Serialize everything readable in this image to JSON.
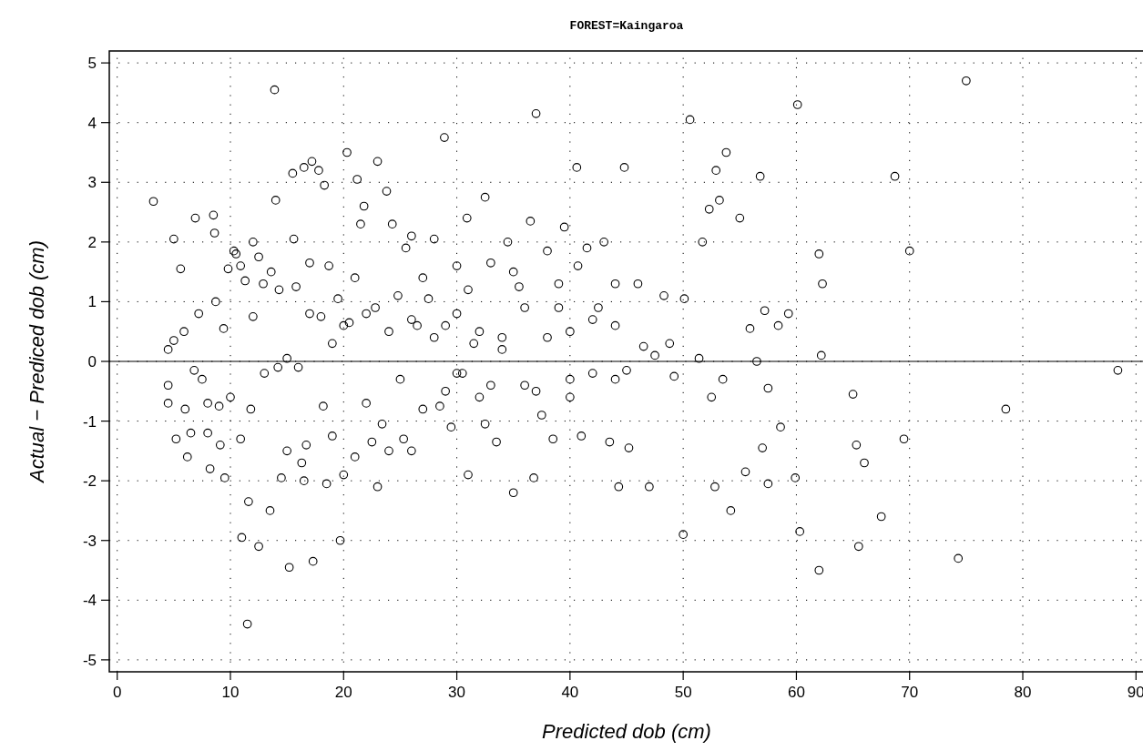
{
  "chart_data": {
    "type": "scatter",
    "title": "FOREST=Kaingaroa",
    "xlabel": "Predicted dob (cm)",
    "ylabel": "Actual − Prediced dob (cm)",
    "xlim": [
      -0.7,
      90.7
    ],
    "ylim": [
      -5.2,
      5.2
    ],
    "xticks": [
      0,
      10,
      20,
      30,
      40,
      50,
      60,
      70,
      80,
      90
    ],
    "yticks": [
      -5,
      -4,
      -3,
      -2,
      -1,
      0,
      1,
      2,
      3,
      4,
      5
    ],
    "grid": true,
    "marker": "circle",
    "ref_lines": [
      {
        "axis": "y",
        "value": 0,
        "color": "#000000",
        "line_style": "solid"
      }
    ],
    "series": [
      {
        "color": "#000000",
        "x": [
          3.2,
          4.5,
          4.5,
          4.5,
          5,
          5,
          5.2,
          5.6,
          5.9,
          6,
          6.2,
          6.5,
          6.8,
          6.9,
          7.2,
          7.5,
          8,
          8,
          8.2,
          8.5,
          8.6,
          8.7,
          9,
          9.1,
          9.4,
          9.5,
          9.8,
          10,
          10.3,
          10.5,
          10.9,
          10.9,
          11,
          11.3,
          11.5,
          11.6,
          11.8,
          12,
          12,
          12.5,
          12.5,
          12.9,
          13.5,
          13.6,
          13.9,
          14,
          14.2,
          14.3,
          14.5,
          15,
          15.2,
          15.5,
          15.6,
          15.8,
          16.3,
          16.5,
          16.5,
          16.7,
          17,
          17.2,
          17.3,
          17.8,
          18,
          18.2,
          18.3,
          18.5,
          18.7,
          19,
          19.5,
          19.7,
          20,
          20.3,
          20.5,
          21,
          21,
          21.2,
          21.5,
          21.8,
          22,
          22.5,
          22.8,
          23,
          23,
          23.4,
          23.8,
          24,
          24.3,
          24.8,
          25.3,
          25.5,
          26,
          26.5,
          27,
          27.5,
          28,
          28.5,
          28.9,
          29,
          29.5,
          30,
          30.5,
          30.9,
          31,
          31.5,
          32,
          32.5,
          32.5,
          33,
          33.5,
          34,
          34.5,
          35,
          35.5,
          36,
          36.5,
          36.8,
          37,
          37.5,
          38,
          38.5,
          39,
          39.5,
          40,
          40.6,
          40.7,
          41,
          41.5,
          42,
          42.5,
          43,
          43.5,
          44,
          44.3,
          44.8,
          45,
          45.2,
          46,
          46.5,
          47,
          47.5,
          48.3,
          48.8,
          49.2,
          50,
          50.1,
          50.6,
          51.4,
          51.7,
          52.3,
          52.5,
          52.8,
          52.9,
          53.2,
          53.5,
          53.8,
          54.2,
          55,
          55.5,
          55.9,
          56.5,
          56.8,
          57,
          57.2,
          57.5,
          57.5,
          58.4,
          58.6,
          59.3,
          59.9,
          60.1,
          60.3,
          62,
          62,
          62.2,
          62.3,
          65,
          65.3,
          65.5,
          66,
          67.5,
          68.7,
          69.5,
          70,
          74.3,
          75,
          78.5,
          88.4,
          20,
          22,
          24,
          26,
          28,
          30,
          32,
          34,
          36,
          38,
          40,
          42,
          44,
          25,
          30,
          33,
          37,
          40,
          44,
          27,
          31,
          35,
          39,
          19,
          17,
          16,
          13,
          15,
          26,
          29
        ],
        "values": [
          2.68,
          0.2,
          -0.4,
          -0.7,
          2.05,
          0.35,
          -1.3,
          1.55,
          0.5,
          -0.8,
          -1.6,
          -1.2,
          -0.15,
          2.4,
          0.8,
          -0.3,
          -0.7,
          -1.2,
          -1.8,
          2.45,
          2.15,
          1.0,
          -0.75,
          -1.4,
          0.55,
          -1.95,
          1.55,
          -0.6,
          1.85,
          1.8,
          1.6,
          -1.3,
          -2.95,
          1.35,
          -4.4,
          -2.35,
          -0.8,
          2.0,
          0.75,
          -3.1,
          1.75,
          1.3,
          -2.5,
          1.5,
          4.55,
          2.7,
          -0.1,
          1.2,
          -1.95,
          0.05,
          -3.45,
          3.15,
          2.05,
          1.25,
          -1.7,
          -2.0,
          3.25,
          -1.4,
          1.65,
          3.35,
          -3.35,
          3.2,
          0.75,
          -0.75,
          2.95,
          -2.05,
          1.6,
          -1.25,
          1.05,
          -3.0,
          -1.9,
          3.5,
          0.65,
          -1.6,
          1.4,
          3.05,
          2.3,
          2.6,
          -0.7,
          -1.35,
          0.9,
          3.35,
          -2.1,
          -1.05,
          2.85,
          -1.5,
          2.3,
          1.1,
          -1.3,
          1.9,
          2.1,
          0.6,
          -0.8,
          1.05,
          2.05,
          -0.75,
          3.75,
          0.6,
          -1.1,
          1.6,
          -0.2,
          2.4,
          -1.9,
          0.3,
          -0.6,
          2.75,
          -1.05,
          1.65,
          -1.35,
          0.2,
          2.0,
          -2.2,
          1.25,
          -0.4,
          2.35,
          -1.95,
          4.15,
          -0.9,
          1.85,
          -1.3,
          0.9,
          2.25,
          -0.3,
          3.25,
          1.6,
          -1.25,
          1.9,
          -0.2,
          0.9,
          2.0,
          -1.35,
          1.3,
          -2.1,
          3.25,
          -0.15,
          -1.45,
          1.3,
          0.25,
          -2.1,
          0.1,
          1.1,
          0.3,
          -0.25,
          -2.9,
          1.05,
          4.05,
          0.05,
          2.0,
          2.55,
          -0.6,
          -2.1,
          3.2,
          2.7,
          -0.3,
          3.5,
          -2.5,
          2.4,
          -1.85,
          0.55,
          0.0,
          3.1,
          -1.45,
          0.85,
          -0.45,
          -2.05,
          0.6,
          -1.1,
          0.8,
          -1.95,
          4.3,
          -2.85,
          1.8,
          -3.5,
          0.1,
          1.3,
          -0.55,
          -1.4,
          -3.1,
          -1.7,
          -2.6,
          3.1,
          -1.3,
          1.85,
          -3.3,
          4.7,
          -0.8,
          -0.15,
          0.6,
          0.8,
          0.5,
          0.7,
          0.4,
          0.8,
          0.5,
          0.4,
          0.9,
          0.4,
          0.5,
          0.7,
          0.6,
          -0.3,
          -0.2,
          -0.4,
          -0.5,
          -0.6,
          -0.3,
          1.4,
          1.2,
          1.5,
          1.3,
          0.3,
          0.8,
          -0.1,
          -0.2,
          -1.5,
          -1.5,
          -0.5
        ]
      }
    ]
  }
}
